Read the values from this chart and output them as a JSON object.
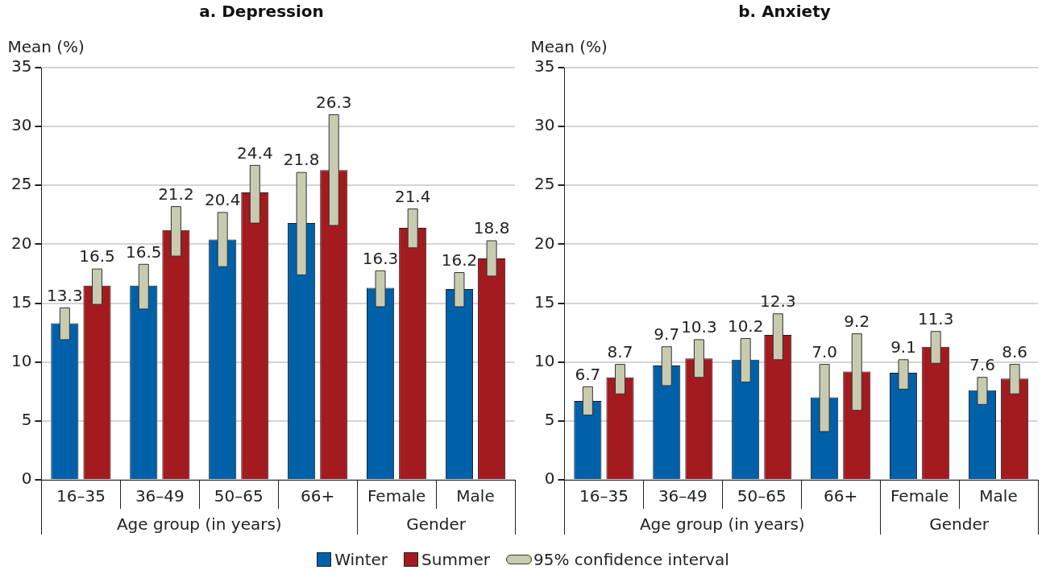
{
  "chart_data": [
    {
      "type": "bar",
      "title": "a. Depression",
      "ylabel": "Mean (%)",
      "categories": [
        "16–35",
        "36–49",
        "50–65",
        "66+",
        "Female",
        "Male"
      ],
      "series": [
        {
          "name": "Winter",
          "color": "#0060a8",
          "values": [
            13.3,
            16.5,
            20.4,
            21.8,
            16.3,
            16.2
          ],
          "value_labels": [
            "13.3",
            "16.5",
            "20.4",
            "21.8",
            "16.3",
            "16.2"
          ],
          "errors": [
            [
              11.9,
              14.6
            ],
            [
              14.5,
              18.3
            ],
            [
              18.1,
              22.7
            ],
            [
              17.4,
              26.1
            ],
            [
              14.7,
              17.75
            ],
            [
              14.7,
              17.6
            ]
          ]
        },
        {
          "name": "Summer",
          "color": "#a31b1f",
          "values": [
            16.5,
            21.2,
            24.4,
            26.3,
            21.4,
            18.8
          ],
          "value_labels": [
            "16.5",
            "21.2",
            "24.4",
            "26.3",
            "21.4",
            "18.8"
          ],
          "errors": [
            [
              14.9,
              17.9
            ],
            [
              19.0,
              23.2
            ],
            [
              21.8,
              26.7
            ],
            [
              21.6,
              31.0
            ],
            [
              19.7,
              23.0
            ],
            [
              17.3,
              20.3
            ]
          ]
        }
      ],
      "ylim": [
        0,
        35
      ],
      "yticks": [
        0,
        5,
        10,
        15,
        20,
        25,
        30,
        35
      ],
      "grid": "y",
      "legend": "bottom",
      "annotations": [
        "Age group (in years)",
        "Gender",
        "95% confidence interval"
      ]
    },
    {
      "type": "bar",
      "title": "b. Anxiety",
      "ylabel": "Mean (%)",
      "categories": [
        "16–35",
        "36–49",
        "50–65",
        "66+",
        "Female",
        "Male"
      ],
      "series": [
        {
          "color": "#0060a8",
          "values": [
            6.7,
            9.7,
            10.2,
            7.0,
            9.1,
            7.6
          ],
          "value_labels": [
            "6.7",
            "9.7",
            "10.2",
            "7.0",
            "9.1",
            "7.6"
          ],
          "errors": [
            [
              5.5,
              7.9
            ],
            [
              8.0,
              11.3
            ],
            [
              8.3,
              12.0
            ],
            [
              4.1,
              9.8
            ],
            [
              7.7,
              10.2
            ],
            [
              6.4,
              8.7
            ]
          ]
        },
        {
          "color": "#a31b1f",
          "values": [
            8.7,
            10.3,
            12.3,
            9.2,
            11.3,
            8.6
          ],
          "value_labels": [
            "8.7",
            "10.3",
            "12.3",
            "9.2",
            "11.3",
            "8.6"
          ],
          "errors": [
            [
              7.3,
              9.8
            ],
            [
              8.7,
              11.9
            ],
            [
              10.2,
              14.1
            ],
            [
              5.9,
              12.4
            ],
            [
              9.9,
              12.6
            ],
            [
              7.3,
              9.8
            ]
          ]
        }
      ],
      "ylim": [
        0,
        35
      ],
      "yticks": [
        0,
        5,
        10,
        15,
        20,
        25,
        30,
        35
      ],
      "grid": "y",
      "annotations": [
        "Age group (in years)",
        "Gender"
      ]
    }
  ]
}
